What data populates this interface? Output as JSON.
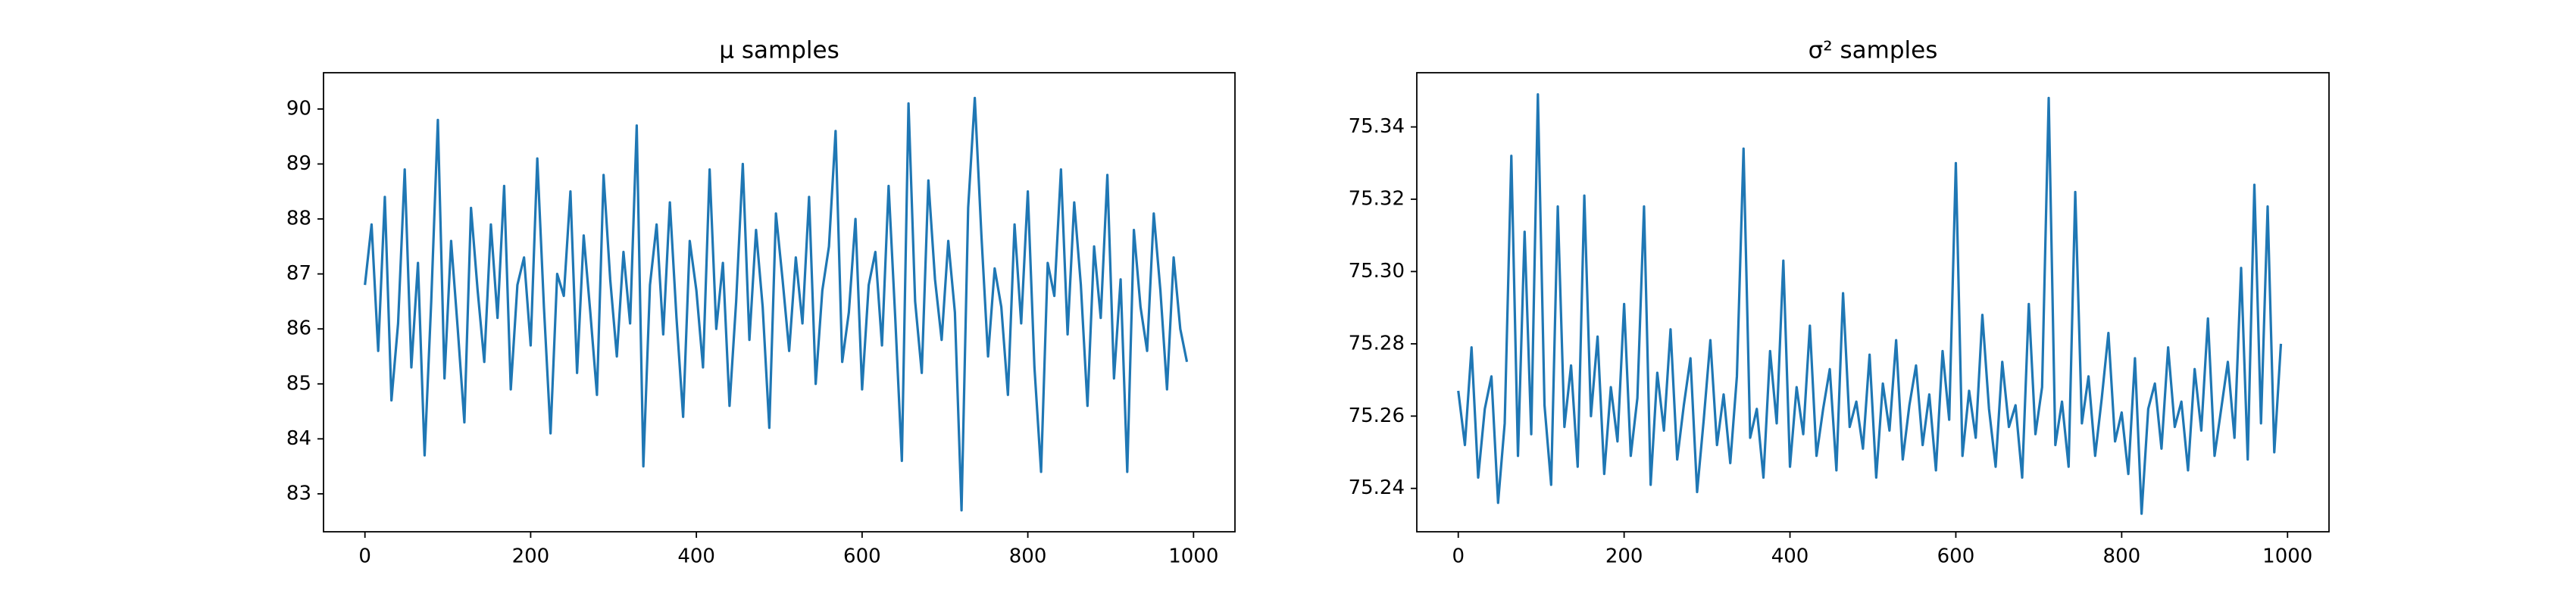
{
  "chart_data": [
    {
      "type": "line",
      "title": "μ samples",
      "color": "#1f77b4",
      "x": [
        0,
        8,
        16,
        24,
        32,
        40,
        48,
        56,
        64,
        72,
        80,
        88,
        96,
        104,
        112,
        120,
        128,
        136,
        144,
        152,
        160,
        168,
        176,
        184,
        192,
        200,
        208,
        216,
        224,
        232,
        240,
        248,
        256,
        264,
        272,
        280,
        288,
        296,
        304,
        312,
        320,
        328,
        336,
        344,
        352,
        360,
        368,
        376,
        384,
        392,
        400,
        408,
        416,
        424,
        432,
        440,
        448,
        456,
        464,
        472,
        480,
        488,
        496,
        504,
        512,
        520,
        528,
        536,
        544,
        552,
        560,
        568,
        576,
        584,
        592,
        600,
        608,
        616,
        624,
        632,
        640,
        648,
        656,
        664,
        672,
        680,
        688,
        696,
        704,
        712,
        720,
        728,
        736,
        744,
        752,
        760,
        768,
        776,
        784,
        792,
        800,
        808,
        816,
        824,
        832,
        840,
        848,
        856,
        864,
        872,
        880,
        888,
        896,
        904,
        912,
        920,
        928,
        936,
        944,
        952,
        960,
        968,
        976,
        984,
        992
      ],
      "values": [
        86.8,
        87.9,
        85.6,
        88.4,
        84.7,
        86.1,
        88.9,
        85.3,
        87.2,
        83.7,
        86.5,
        89.8,
        85.1,
        87.6,
        86.0,
        84.3,
        88.2,
        86.7,
        85.4,
        87.9,
        86.2,
        88.6,
        84.9,
        86.8,
        87.3,
        85.7,
        89.1,
        86.4,
        84.1,
        87.0,
        86.6,
        88.5,
        85.2,
        87.7,
        86.3,
        84.8,
        88.8,
        86.9,
        85.5,
        87.4,
        86.1,
        89.7,
        83.5,
        86.8,
        87.9,
        85.9,
        88.3,
        86.2,
        84.4,
        87.6,
        86.7,
        85.3,
        88.9,
        86.0,
        87.2,
        84.6,
        86.5,
        89.0,
        85.8,
        87.8,
        86.4,
        84.2,
        88.1,
        86.9,
        85.6,
        87.3,
        86.1,
        88.4,
        85.0,
        86.7,
        87.5,
        89.6,
        85.4,
        86.3,
        88.0,
        84.9,
        86.8,
        87.4,
        85.7,
        88.6,
        86.2,
        83.6,
        90.1,
        86.5,
        85.2,
        88.7,
        86.9,
        85.8,
        87.6,
        86.3,
        82.7,
        88.2,
        90.2,
        87.7,
        85.5,
        87.1,
        86.4,
        84.8,
        87.9,
        86.1,
        88.5,
        85.3,
        83.4,
        87.2,
        86.6,
        88.9,
        85.9,
        88.3,
        86.8,
        84.6,
        87.5,
        86.2,
        88.8,
        85.1,
        86.9,
        83.4,
        87.8,
        86.4,
        85.6,
        88.1,
        86.7,
        84.9,
        87.3,
        86.0,
        85.4
      ],
      "xlim": [
        -50,
        1050
      ],
      "xticks": [
        0,
        200,
        400,
        600,
        800,
        1000
      ],
      "ylim": [
        82.31,
        90.66
      ],
      "yticks": [
        83,
        84,
        85,
        86,
        87,
        88,
        89,
        90
      ]
    },
    {
      "type": "line",
      "title": "σ² samples",
      "color": "#1f77b4",
      "x": [
        0,
        8,
        16,
        24,
        32,
        40,
        48,
        56,
        64,
        72,
        80,
        88,
        96,
        104,
        112,
        120,
        128,
        136,
        144,
        152,
        160,
        168,
        176,
        184,
        192,
        200,
        208,
        216,
        224,
        232,
        240,
        248,
        256,
        264,
        272,
        280,
        288,
        296,
        304,
        312,
        320,
        328,
        336,
        344,
        352,
        360,
        368,
        376,
        384,
        392,
        400,
        408,
        416,
        424,
        432,
        440,
        448,
        456,
        464,
        472,
        480,
        488,
        496,
        504,
        512,
        520,
        528,
        536,
        544,
        552,
        560,
        568,
        576,
        584,
        592,
        600,
        608,
        616,
        624,
        632,
        640,
        648,
        656,
        664,
        672,
        680,
        688,
        696,
        704,
        712,
        720,
        728,
        736,
        744,
        752,
        760,
        768,
        776,
        784,
        792,
        800,
        808,
        816,
        824,
        832,
        840,
        848,
        856,
        864,
        872,
        880,
        888,
        896,
        904,
        912,
        920,
        928,
        936,
        944,
        952,
        960,
        968,
        976,
        984,
        992
      ],
      "values": [
        75.267,
        75.252,
        75.279,
        75.243,
        75.262,
        75.271,
        75.236,
        75.258,
        75.332,
        75.249,
        75.311,
        75.255,
        75.349,
        75.263,
        75.241,
        75.318,
        75.257,
        75.274,
        75.246,
        75.321,
        75.26,
        75.282,
        75.244,
        75.268,
        75.253,
        75.291,
        75.249,
        75.265,
        75.318,
        75.241,
        75.272,
        75.256,
        75.284,
        75.248,
        75.263,
        75.276,
        75.239,
        75.259,
        75.281,
        75.252,
        75.266,
        75.247,
        75.271,
        75.334,
        75.254,
        75.262,
        75.243,
        75.278,
        75.258,
        75.303,
        75.246,
        75.268,
        75.255,
        75.285,
        75.249,
        75.262,
        75.273,
        75.245,
        75.294,
        75.257,
        75.264,
        75.251,
        75.277,
        75.243,
        75.269,
        75.256,
        75.281,
        75.248,
        75.263,
        75.274,
        75.252,
        75.266,
        75.245,
        75.278,
        75.259,
        75.33,
        75.249,
        75.267,
        75.254,
        75.288,
        75.262,
        75.246,
        75.275,
        75.257,
        75.263,
        75.243,
        75.291,
        75.255,
        75.268,
        75.348,
        75.252,
        75.264,
        75.246,
        75.322,
        75.258,
        75.271,
        75.249,
        75.265,
        75.283,
        75.253,
        75.261,
        75.244,
        75.276,
        75.233,
        75.262,
        75.269,
        75.251,
        75.279,
        75.257,
        75.264,
        75.245,
        75.273,
        75.256,
        75.287,
        75.249,
        75.262,
        75.275,
        75.254,
        75.301,
        75.248,
        75.324,
        75.258,
        75.318,
        75.25,
        75.28
      ],
      "xlim": [
        -50,
        1050
      ],
      "xticks": [
        0,
        200,
        400,
        600,
        800,
        1000
      ],
      "ylim": [
        75.228,
        75.355
      ],
      "yticks": [
        75.24,
        75.26,
        75.28,
        {
          "value": 75.3,
          "label": "75.30"
        },
        75.32,
        75.34
      ]
    }
  ]
}
